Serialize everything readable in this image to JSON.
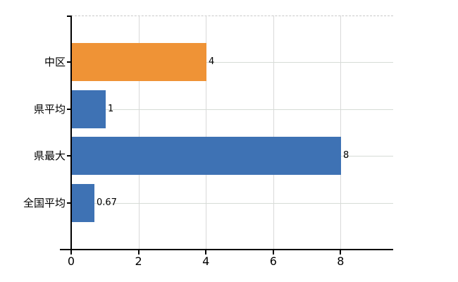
{
  "chart_data": {
    "type": "bar",
    "orientation": "horizontal",
    "title": "",
    "categories": [
      "中区",
      "県平均",
      "県最大",
      "全国平均"
    ],
    "values": [
      4,
      1,
      8,
      0.67
    ],
    "value_labels": [
      "4",
      "1",
      "8",
      "0.67"
    ],
    "bar_colors": [
      "#EF9336",
      "#3E72B4",
      "#3E72B4",
      "#3E72B4"
    ],
    "x_ticks": [
      0,
      2,
      4,
      6,
      8
    ],
    "x_tick_labels": [
      "0",
      "2",
      "4",
      "6",
      "8"
    ],
    "xlim": [
      0,
      9.56
    ],
    "grid": true,
    "legend": false,
    "colors": {
      "highlight_bar": "#EF9336",
      "default_bar": "#3E72B4",
      "horizontal_gridline": "#d6dcd6",
      "vertical_gridline": "#d9d9d9",
      "top_border": "#c8c8c8",
      "axis": "#000000",
      "text": "#000000",
      "background": "#ffffff"
    }
  }
}
